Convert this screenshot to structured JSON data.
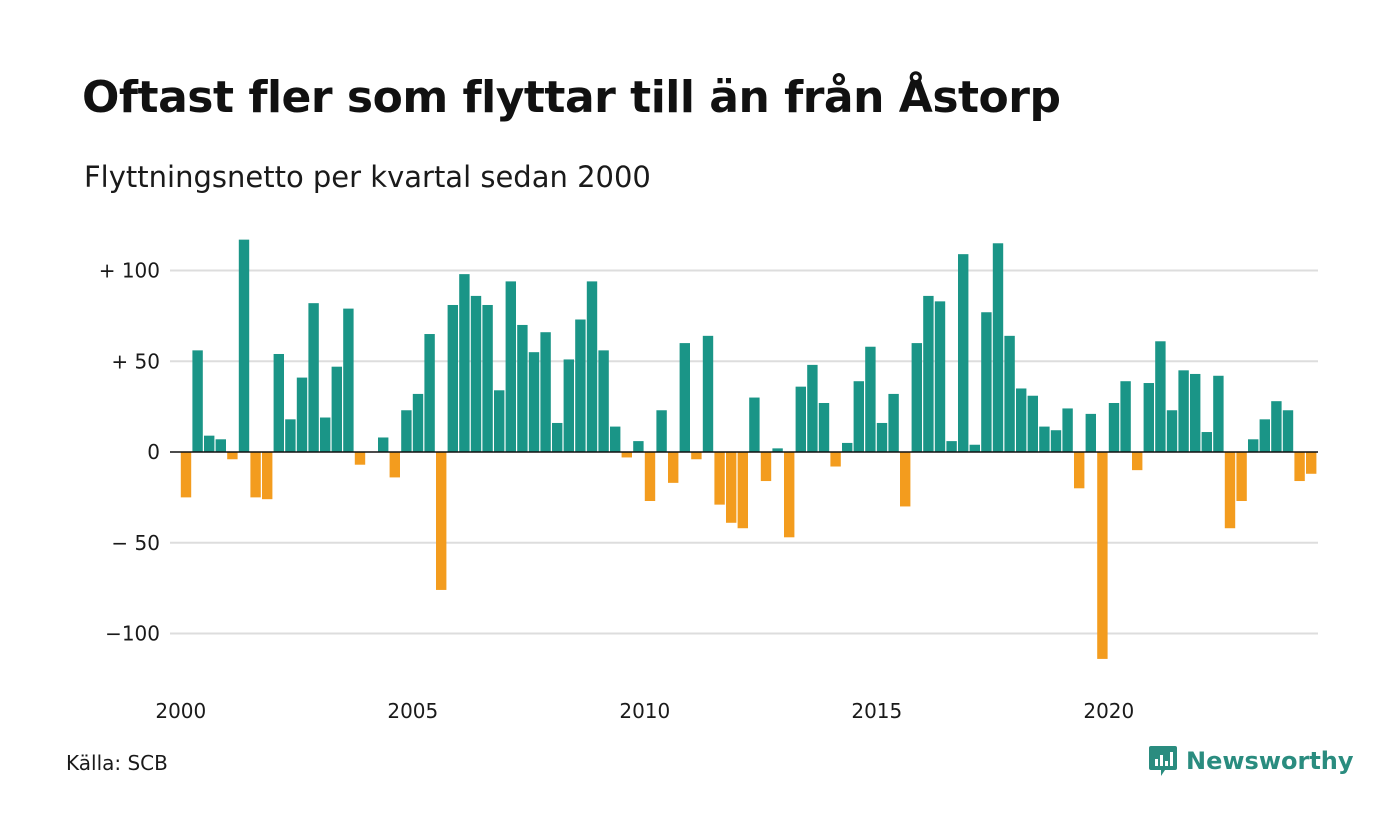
{
  "title": "Oftast fler som flyttar till än från Åstorp",
  "subtitle": "Flyttningsnetto per kvartal sedan 2000",
  "source": "Källa: SCB",
  "brand": "Newsworthy",
  "colors": {
    "positive": "#1a9587",
    "negative": "#f39c1e",
    "grid": "#dddddd",
    "brand": "#2a8c7f"
  },
  "chart_data": {
    "type": "bar",
    "x_start": "2000 Q1",
    "y_ticks": [
      100,
      50,
      0,
      -50,
      -100
    ],
    "y_tick_labels": [
      "+ 100",
      "+  50",
      "0",
      "− 50",
      "−100"
    ],
    "x_ticks": [
      2000,
      2005,
      2010,
      2015,
      2020
    ],
    "x_tick_labels": [
      "2000",
      "2005",
      "2010",
      "2015",
      "2020"
    ],
    "ylim": [
      -120,
      120
    ],
    "grid": true,
    "values": [
      -25,
      56,
      9,
      7,
      -4,
      117,
      -25,
      -26,
      54,
      18,
      41,
      82,
      19,
      47,
      79,
      -7,
      0,
      8,
      -14,
      23,
      32,
      65,
      -76,
      81,
      98,
      86,
      81,
      34,
      94,
      70,
      55,
      66,
      16,
      51,
      73,
      94,
      56,
      14,
      -3,
      6,
      -27,
      23,
      -17,
      60,
      -4,
      64,
      -29,
      -39,
      -42,
      30,
      -16,
      2,
      -47,
      36,
      48,
      27,
      -8,
      5,
      39,
      58,
      16,
      32,
      -30,
      60,
      86,
      83,
      6,
      109,
      4,
      77,
      115,
      64,
      35,
      31,
      14,
      12,
      24,
      -20,
      21,
      -114,
      27,
      39,
      -10,
      38,
      61,
      23,
      45,
      43,
      11,
      42,
      -42,
      -27,
      7,
      18,
      28,
      23,
      -16,
      -12
    ]
  }
}
